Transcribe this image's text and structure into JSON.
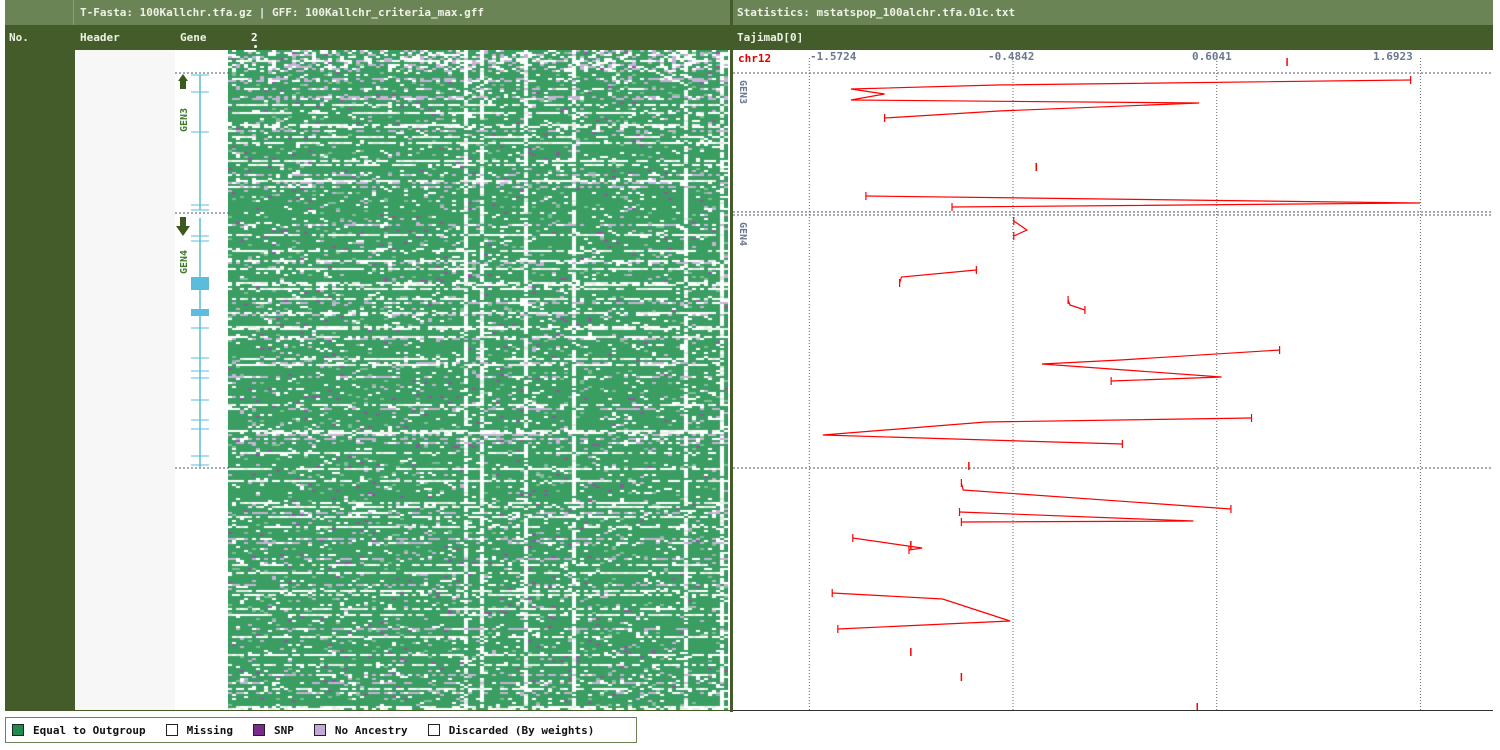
{
  "left_panel": {
    "title": "T-Fasta: 100Kallchr.tfa.gz | GFF: 100Kallchr_criteria_max.gff",
    "columns": {
      "no": "No.",
      "header": "Header",
      "gene": "Gene",
      "position": "2"
    },
    "genes": [
      {
        "name": "GEN3",
        "strand": "up"
      },
      {
        "name": "GEN4",
        "strand": "down"
      }
    ]
  },
  "right_panel": {
    "title": "Statistics: mstatspop_100alchr.tfa.01c.txt",
    "stat_name": "TajimaD[0]",
    "chromosome": "chr12",
    "axis_ticks": [
      "-1.5724",
      "-0.4842",
      "0.6041",
      "1.6923"
    ],
    "gene_labels": [
      "GEN3",
      "GEN4"
    ]
  },
  "legend": [
    {
      "label": "Equal to Outgroup",
      "color": "#1f8a4c"
    },
    {
      "label": "Missing",
      "color": "#ffffff"
    },
    {
      "label": "SNP",
      "color": "#7a2a8a"
    },
    {
      "label": "No Ancestry",
      "color": "#c4a8d8"
    },
    {
      "label": "Discarded (By weights)",
      "color": "#ffffff"
    }
  ],
  "colors": {
    "equal": "#3a9e62",
    "snp": "#8a5aa0",
    "no_ancestry": "#c8b4da",
    "plot_line": "#ff0000",
    "gene_model": "#5bbcdc",
    "strand_arrow": "#3d5a1e"
  },
  "chart_data": {
    "type": "line",
    "ylabel": "TajimaD[0]",
    "x_ticks": [
      -1.5724,
      -0.4842,
      0.6041,
      1.6923
    ],
    "xlim": [
      -1.98,
      2.08
    ],
    "segments": [
      [
        [
          1.64,
          0
        ],
        [
          -0.57,
          5
        ],
        [
          -1.35,
          9
        ],
        [
          -1.17,
          14
        ],
        [
          -1.35,
          20
        ],
        [
          0.51,
          23
        ],
        [
          -0.56,
          31
        ],
        [
          -1.17,
          38
        ]
      ],
      [
        [
          -1.27,
          0
        ],
        [
          1.69,
          7
        ],
        [
          -0.81,
          11
        ]
      ],
      [
        [
          -0.48,
          0
        ],
        [
          -0.41,
          9
        ],
        [
          -0.48,
          15
        ]
      ],
      [
        [
          -0.68,
          0
        ],
        [
          -1.08,
          7
        ],
        [
          -1.09,
          13
        ]
      ],
      [
        [
          -0.19,
          0
        ],
        [
          -0.18,
          5
        ],
        [
          -0.1,
          10
        ]
      ],
      [
        [
          0.94,
          0
        ],
        [
          0.09,
          10
        ],
        [
          -0.33,
          14
        ],
        [
          0.63,
          27
        ],
        [
          0.04,
          31
        ]
      ],
      [
        [
          0.79,
          0
        ],
        [
          -0.63,
          4
        ],
        [
          -1.5,
          17
        ],
        [
          -0.62,
          22
        ],
        [
          0.1,
          26
        ]
      ],
      [
        [
          -0.76,
          0
        ],
        [
          -0.75,
          7
        ],
        [
          0.68,
          26
        ]
      ],
      [
        [
          -0.77,
          0
        ],
        [
          0.48,
          9
        ],
        [
          -0.76,
          10
        ]
      ],
      [
        [
          -1.34,
          0
        ],
        [
          -0.97,
          10
        ],
        [
          -1.04,
          12
        ]
      ],
      [
        [
          -1.45,
          0
        ],
        [
          -0.86,
          6
        ],
        [
          -0.5,
          28
        ],
        [
          -1.42,
          36
        ]
      ]
    ]
  }
}
